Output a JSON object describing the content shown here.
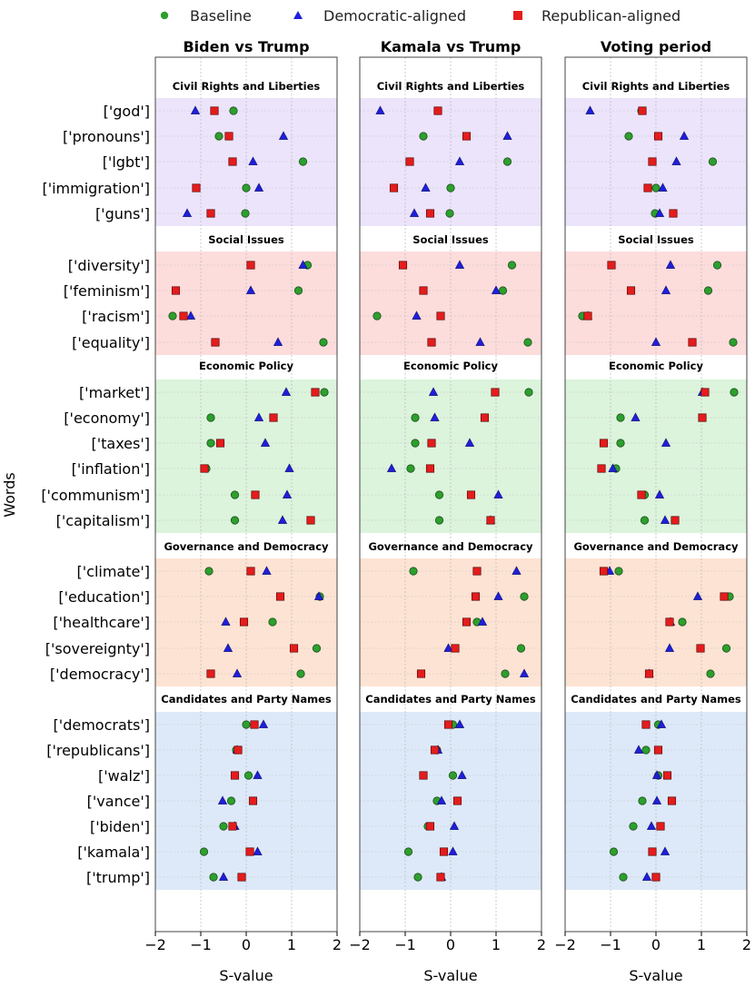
{
  "chart_data": {
    "type": "scatter",
    "ylabel": "Words",
    "xlabel": "S-value",
    "xlim": [
      -2,
      2
    ],
    "xticks": [
      "-2",
      "-1",
      "0",
      "1",
      "2"
    ],
    "grid": true,
    "legend_position": "top-center",
    "series": [
      {
        "key": "baseline",
        "name": "Baseline",
        "marker": "circle",
        "color": "#2ca02c"
      },
      {
        "key": "dem",
        "name": "Democratic-aligned",
        "marker": "triangle",
        "color": "#1f1fdb"
      },
      {
        "key": "rep",
        "name": "Republican-aligned",
        "marker": "square",
        "color": "#e51c1c"
      }
    ],
    "groups": [
      {
        "name": "Civil Rights and Liberties",
        "color": "#ece4fb",
        "words": [
          "['god']",
          "['pronouns']",
          "['lgbt']",
          "['immigration']",
          "['guns']"
        ]
      },
      {
        "name": "Social Issues",
        "color": "#fddcdc",
        "words": [
          "['diversity']",
          "['feminism']",
          "['racism']",
          "['equality']"
        ]
      },
      {
        "name": "Economic Policy",
        "color": "#dcf3dc",
        "words": [
          "['market']",
          "['economy']",
          "['taxes']",
          "['inflation']",
          "['communism']",
          "['capitalism']"
        ]
      },
      {
        "name": "Governance and Democracy",
        "color": "#fde3d3",
        "words": [
          "['climate']",
          "['education']",
          "['healthcare']",
          "['sovereignty']",
          "['democracy']"
        ]
      },
      {
        "name": "Candidates and Party Names",
        "color": "#dde9f8",
        "words": [
          "['democrats']",
          "['republicans']",
          "['walz']",
          "['vance']",
          "['biden']",
          "['kamala']",
          "['trump']"
        ]
      }
    ],
    "panels": [
      {
        "title": "Biden vs Trump",
        "baseline": [
          -0.28,
          -0.6,
          1.25,
          0.0,
          -0.02,
          1.35,
          1.15,
          -1.62,
          1.7,
          1.72,
          -0.78,
          -0.78,
          -0.88,
          -0.25,
          -0.25,
          -0.82,
          1.62,
          0.58,
          1.55,
          1.2,
          0.0,
          -0.22,
          0.05,
          -0.33,
          -0.5,
          -0.93,
          -0.72
        ],
        "dem": [
          -1.12,
          0.82,
          0.15,
          0.28,
          -1.3,
          1.25,
          0.1,
          -1.22,
          0.7,
          0.88,
          0.28,
          0.42,
          0.95,
          0.9,
          0.8,
          0.45,
          1.6,
          -0.45,
          -0.4,
          -0.2,
          0.38,
          -0.2,
          0.25,
          -0.52,
          -0.25,
          0.25,
          -0.5
        ],
        "rep": [
          -0.7,
          -0.38,
          -0.3,
          -1.1,
          -0.78,
          0.1,
          -1.55,
          -1.38,
          -0.68,
          1.52,
          0.6,
          -0.57,
          -0.92,
          0.2,
          1.42,
          0.1,
          0.75,
          -0.05,
          1.05,
          -0.78,
          0.18,
          -0.18,
          -0.25,
          0.15,
          -0.3,
          0.08,
          -0.1
        ]
      },
      {
        "title": "Kamala vs Trump",
        "baseline": [
          -0.28,
          -0.6,
          1.25,
          0.0,
          -0.02,
          1.35,
          1.15,
          -1.62,
          1.7,
          1.72,
          -0.78,
          -0.78,
          -0.88,
          -0.25,
          -0.25,
          -0.82,
          1.62,
          0.58,
          1.55,
          1.2,
          0.05,
          -0.3,
          0.05,
          -0.3,
          -0.5,
          -0.93,
          -0.72
        ],
        "dem": [
          -1.55,
          1.25,
          0.2,
          -0.55,
          -0.8,
          0.2,
          1.0,
          -0.75,
          0.65,
          -0.38,
          -0.35,
          0.42,
          -1.3,
          1.05,
          0.88,
          1.45,
          1.05,
          0.7,
          -0.05,
          1.62,
          0.2,
          -0.28,
          0.25,
          -0.2,
          0.08,
          0.05,
          -0.2
        ],
        "rep": [
          -0.28,
          0.35,
          -0.9,
          -1.25,
          -0.45,
          -1.05,
          -0.6,
          -0.22,
          -0.42,
          0.98,
          0.75,
          -0.42,
          -0.45,
          0.45,
          0.88,
          0.58,
          0.55,
          0.35,
          0.1,
          -0.65,
          -0.05,
          -0.35,
          -0.6,
          0.15,
          -0.45,
          -0.15,
          -0.22
        ]
      },
      {
        "title": "Voting period",
        "baseline": [
          -0.32,
          -0.6,
          1.25,
          0.0,
          -0.02,
          1.35,
          1.15,
          -1.62,
          1.7,
          1.72,
          -0.78,
          -0.78,
          -0.88,
          -0.25,
          -0.25,
          -0.82,
          1.62,
          0.58,
          1.55,
          1.2,
          0.05,
          -0.22,
          0.05,
          -0.3,
          -0.5,
          -0.93,
          -0.72
        ],
        "dem": [
          -1.45,
          0.62,
          0.45,
          0.15,
          0.08,
          0.32,
          0.22,
          -1.5,
          0.0,
          1.02,
          -0.45,
          0.22,
          -0.95,
          0.08,
          0.2,
          -1.02,
          0.92,
          0.32,
          0.3,
          -0.15,
          0.12,
          -0.38,
          0.02,
          0.02,
          -0.1,
          0.2,
          -0.2
        ],
        "rep": [
          -0.3,
          0.05,
          -0.08,
          -0.18,
          0.38,
          -0.98,
          -0.55,
          -1.5,
          0.8,
          1.08,
          1.02,
          -1.15,
          -1.2,
          -0.32,
          0.42,
          -1.15,
          1.5,
          0.3,
          0.98,
          -0.15,
          -0.22,
          0.05,
          0.25,
          0.35,
          0.1,
          -0.08,
          0.0
        ]
      }
    ]
  }
}
